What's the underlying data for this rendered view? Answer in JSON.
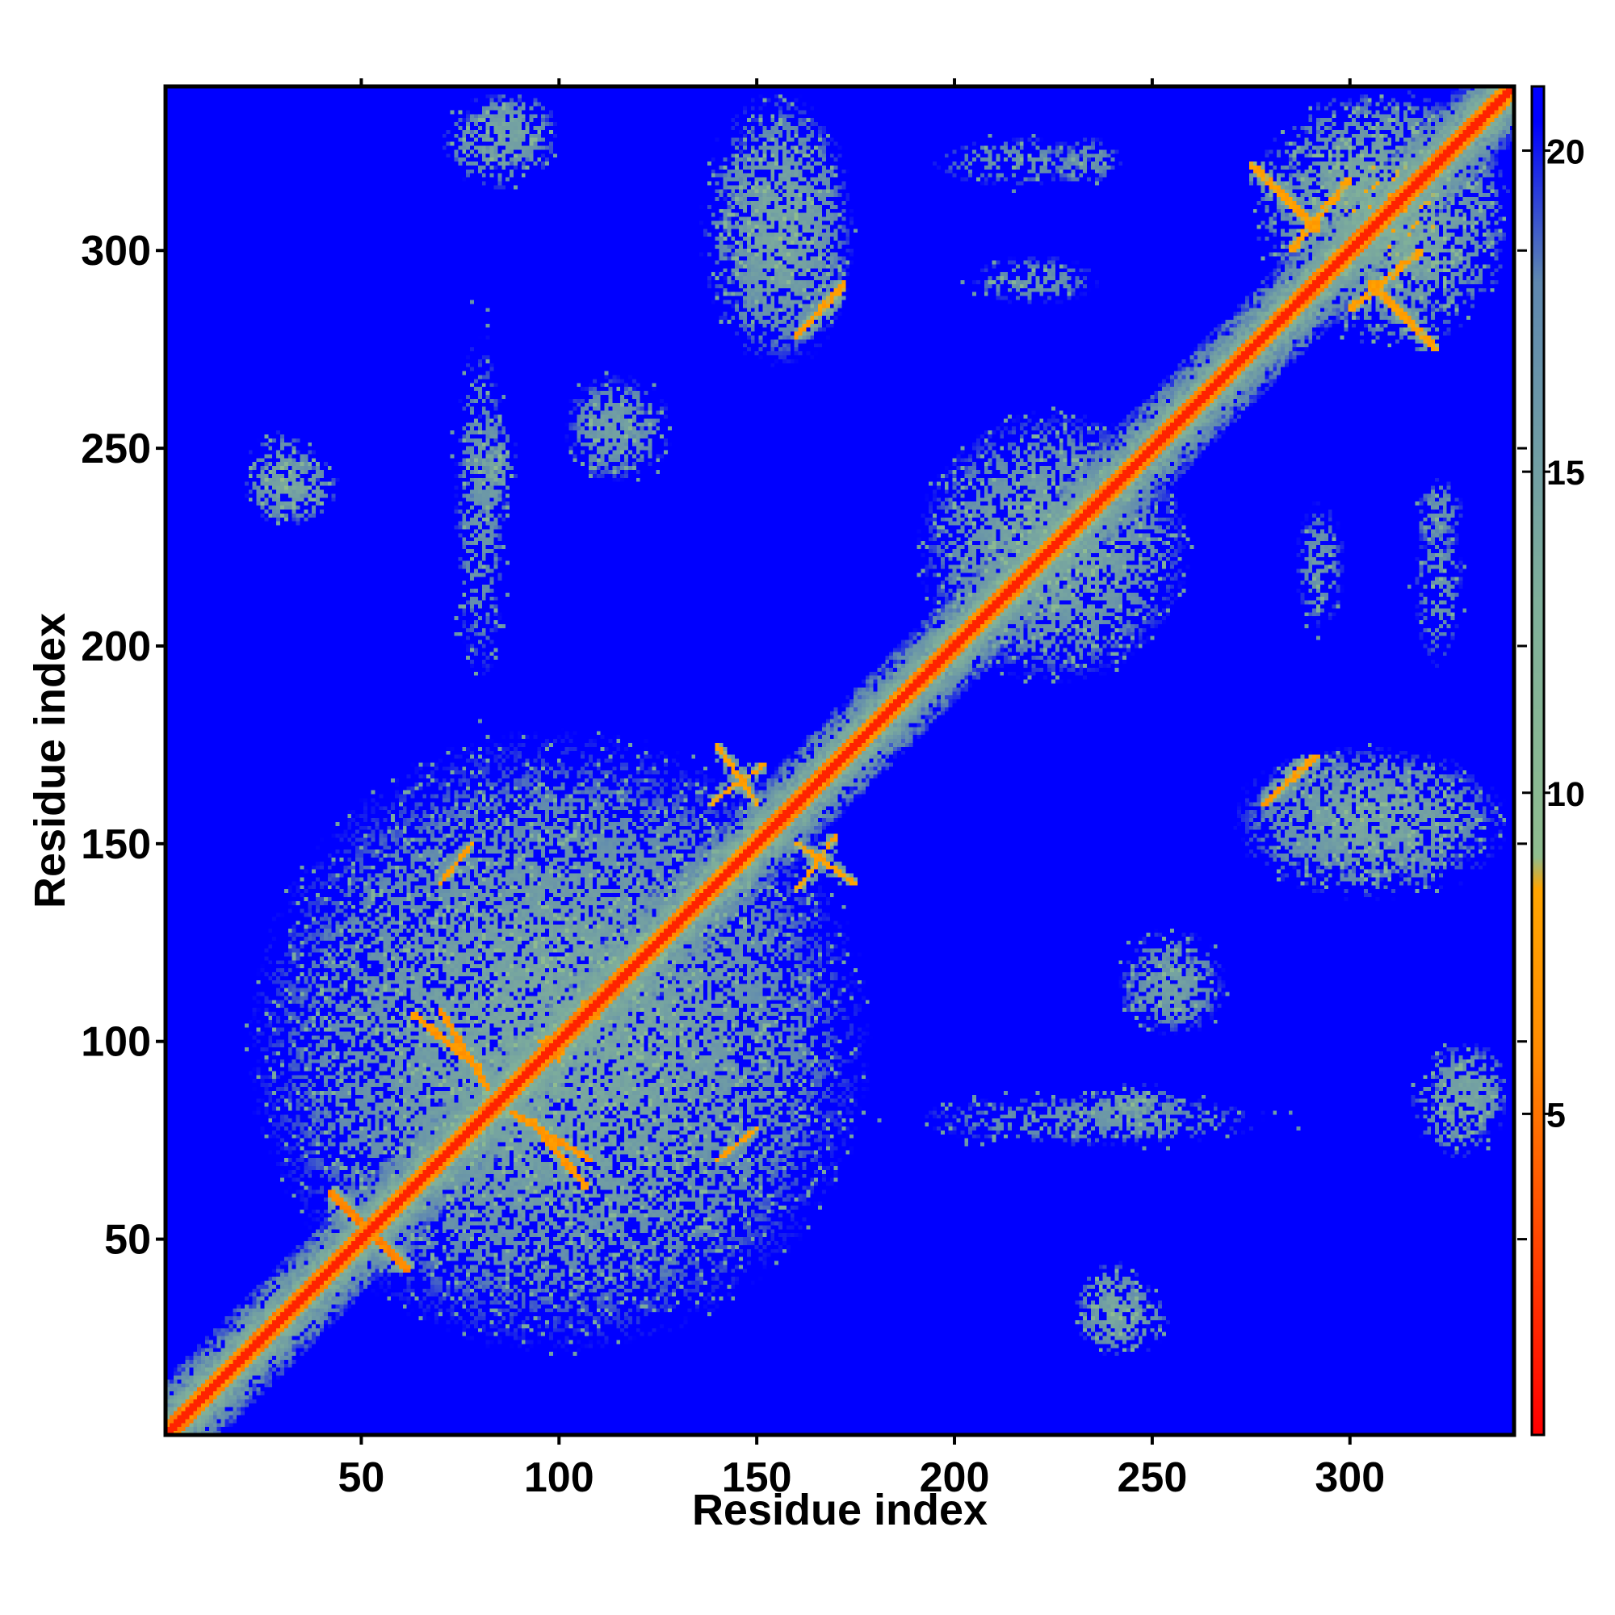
{
  "chart_data": {
    "type": "heatmap",
    "title": "",
    "xlabel": "Residue index",
    "ylabel": "Residue index",
    "n_residues": 341,
    "xlim": [
      1,
      341
    ],
    "ylim": [
      1,
      341
    ],
    "xticks": [
      50,
      100,
      150,
      200,
      250,
      300
    ],
    "yticks": [
      50,
      100,
      150,
      200,
      250,
      300
    ],
    "colorbar": {
      "range": [
        0,
        21
      ],
      "ticks": [
        5,
        10,
        15,
        20
      ],
      "colors": [
        {
          "value": 0,
          "color": "#ff0000"
        },
        {
          "value": 6,
          "color": "#ff8c00"
        },
        {
          "value": 8.5,
          "color": "#ffa500"
        },
        {
          "value": 9,
          "color": "#8fbc8f"
        },
        {
          "value": 13,
          "color": "#7faf9a"
        },
        {
          "value": 18,
          "color": "#5f88b0"
        },
        {
          "value": 20.5,
          "color": "#0000ff"
        }
      ],
      "background_color": "#0000ff"
    },
    "contact_regions": [
      {
        "x": [
          1,
          341
        ],
        "y": [
          1,
          341
        ],
        "shape": "diagonal",
        "distance": 2
      },
      {
        "x": [
          42,
          62
        ],
        "y": [
          42,
          62
        ],
        "shape": "cross",
        "distance": 6
      },
      {
        "x": [
          63,
          80
        ],
        "y": [
          93,
          107
        ],
        "shape": "antidiagonal",
        "distance": 7
      },
      {
        "x": [
          70,
          78
        ],
        "y": [
          140,
          150
        ],
        "shape": "block",
        "distance": 8
      },
      {
        "x": [
          88,
          108
        ],
        "y": [
          70,
          82
        ],
        "shape": "antidiagonal",
        "distance": 7
      },
      {
        "x": [
          100,
          106
        ],
        "y": [
          95,
          110
        ],
        "shape": "block",
        "distance": 7
      },
      {
        "x": [
          140,
          150
        ],
        "y": [
          70,
          78
        ],
        "shape": "block",
        "distance": 8
      },
      {
        "x": [
          138,
          152
        ],
        "y": [
          160,
          170
        ],
        "shape": "block",
        "distance": 8
      },
      {
        "x": [
          160,
          175
        ],
        "y": [
          140,
          150
        ],
        "shape": "antidiagonal",
        "distance": 8
      },
      {
        "x": [
          160,
          172
        ],
        "y": [
          278,
          290
        ],
        "shape": "block",
        "distance": 8
      },
      {
        "x": [
          278,
          292
        ],
        "y": [
          160,
          172
        ],
        "shape": "block",
        "distance": 8
      },
      {
        "x": [
          285,
          300
        ],
        "y": [
          300,
          318
        ],
        "shape": "block",
        "distance": 8
      },
      {
        "x": [
          305,
          322
        ],
        "y": [
          275,
          292
        ],
        "shape": "antidiagonal",
        "distance": 8
      },
      {
        "x": [
          20,
          40
        ],
        "y": [
          230,
          255
        ],
        "shape": "cloud",
        "distance": 12
      },
      {
        "x": [
          75,
          90
        ],
        "y": [
          230,
          260
        ],
        "shape": "cloud",
        "distance": 12
      },
      {
        "x": [
          100,
          130
        ],
        "y": [
          240,
          270
        ],
        "shape": "cloud",
        "distance": 13
      },
      {
        "x": [
          70,
          100
        ],
        "y": [
          315,
          340
        ],
        "shape": "cloud",
        "distance": 12
      },
      {
        "x": [
          140,
          175
        ],
        "y": [
          270,
          340
        ],
        "shape": "cloud",
        "distance": 12
      },
      {
        "x": [
          220,
          245
        ],
        "y": [
          315,
          330
        ],
        "shape": "cloud",
        "distance": 14
      },
      {
        "x": [
          280,
          341
        ],
        "y": [
          275,
          340
        ],
        "shape": "cloud",
        "distance": 11
      },
      {
        "x": [
          190,
          260
        ],
        "y": [
          190,
          260
        ],
        "shape": "cloud",
        "distance": 12
      },
      {
        "x": [
          230,
          250
        ],
        "y": [
          20,
          45
        ],
        "shape": "cloud",
        "distance": 12
      },
      {
        "x": [
          240,
          270
        ],
        "y": [
          100,
          125
        ],
        "shape": "cloud",
        "distance": 13
      },
      {
        "x": [
          180,
          290
        ],
        "y": [
          72,
          88
        ],
        "shape": "cloud",
        "distance": 14
      },
      {
        "x": [
          320,
          341
        ],
        "y": [
          75,
          100
        ],
        "shape": "cloud",
        "distance": 12
      },
      {
        "x": [
          270,
          341
        ],
        "y": [
          135,
          175
        ],
        "shape": "cloud",
        "distance": 12
      },
      {
        "x": [
          20,
          180
        ],
        "y": [
          20,
          180
        ],
        "shape": "cloud",
        "distance": 12
      },
      {
        "x": [
          315,
          330
        ],
        "y": [
          190,
          240
        ],
        "shape": "cloud",
        "distance": 14
      },
      {
        "x": [
          285,
          300
        ],
        "y": [
          200,
          240
        ],
        "shape": "cloud",
        "distance": 14
      }
    ]
  }
}
